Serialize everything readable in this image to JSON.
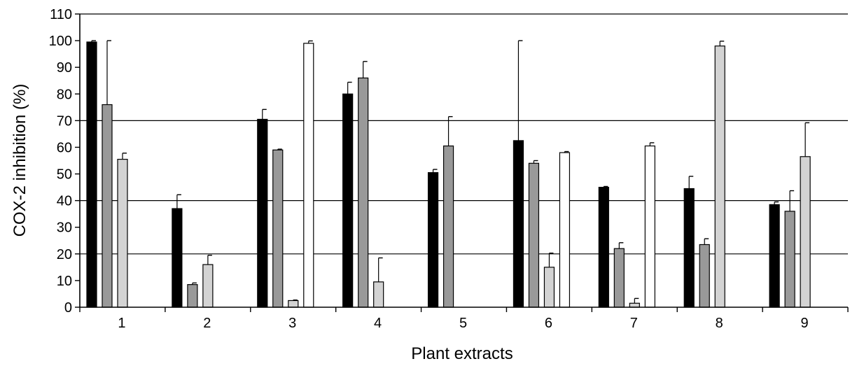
{
  "chart_data": {
    "type": "bar",
    "title": "",
    "xlabel": "Plant extracts",
    "ylabel": "COX-2 inhibition (%)",
    "ylim": [
      0,
      110
    ],
    "yticks": [
      0,
      10,
      20,
      30,
      40,
      50,
      60,
      70,
      80,
      90,
      100,
      110
    ],
    "gridlines_y": [
      20,
      40,
      70,
      110
    ],
    "grid": "horizontal lines at 20, 40, 70 and 110",
    "legend": "none",
    "categories": [
      "1",
      "2",
      "3",
      "4",
      "5",
      "6",
      "7",
      "8",
      "9"
    ],
    "series": [
      {
        "color": "#000000",
        "values": [
          99.5,
          37,
          70.5,
          80,
          50.5,
          62.5,
          45,
          44.5,
          38.5
        ],
        "errors": [
          0.5,
          5.2,
          3.7,
          4.4,
          1.2,
          37.5,
          0.3,
          4.6,
          1
        ]
      },
      {
        "color": "#999999",
        "values": [
          76,
          8.5,
          59,
          86,
          60.5,
          54,
          22,
          23.5,
          36
        ],
        "errors": [
          24,
          0.6,
          0.3,
          6.2,
          11,
          1,
          2.2,
          2.2,
          7.7
        ]
      },
      {
        "color": "#d3d3d3",
        "values": [
          55.5,
          16,
          2.5,
          9.5,
          0,
          15,
          1.5,
          98,
          56.5
        ],
        "errors": [
          2.3,
          3.5,
          0.2,
          9,
          0,
          5.3,
          1.8,
          1.8,
          12.7
        ]
      },
      {
        "color": "#ffffff",
        "values": [
          0,
          0,
          99,
          0,
          0,
          58,
          60.5,
          0,
          0
        ],
        "errors": [
          0,
          0,
          0.9,
          0,
          0,
          0.4,
          1.2,
          0,
          0
        ]
      }
    ]
  }
}
